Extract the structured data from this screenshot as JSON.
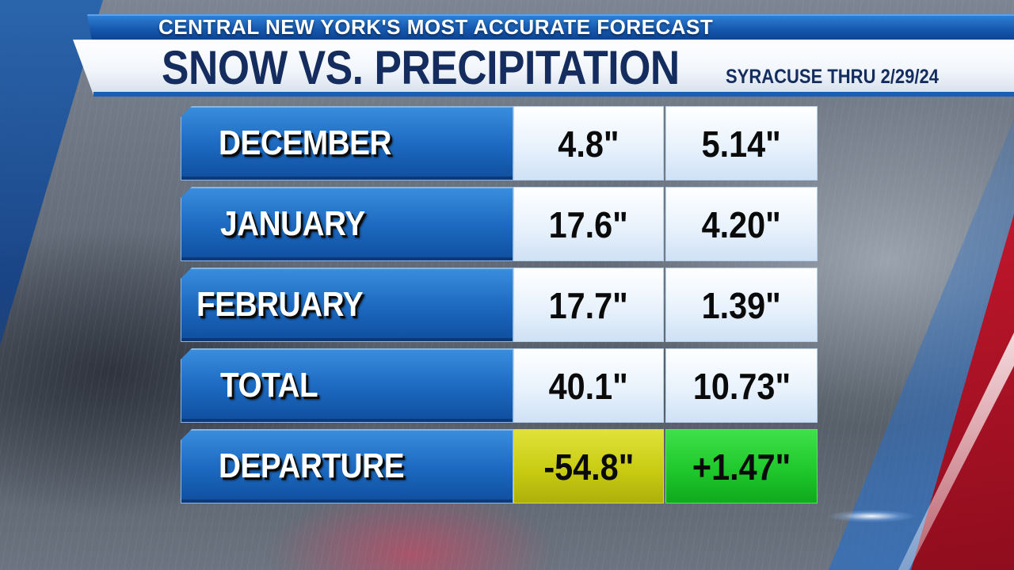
{
  "header": {
    "tagline": "CENTRAL NEW YORK'S MOST ACCURATE FORECAST",
    "title": "SNOW VS. PRECIPITATION",
    "subtitle": "SYRACUSE THRU 2/29/24"
  },
  "table": {
    "rows": [
      {
        "label": "DECEMBER",
        "snow": "4.8\"",
        "precip": "5.14\""
      },
      {
        "label": "JANUARY",
        "snow": "17.6\"",
        "precip": "4.20\""
      },
      {
        "label": "FEBRUARY",
        "snow": "17.7\"",
        "precip": "1.39\""
      },
      {
        "label": "TOTAL",
        "snow": "40.1\"",
        "precip": "10.73\""
      },
      {
        "label": "DEPARTURE",
        "snow": "-54.8\"",
        "precip": "+1.47\""
      }
    ]
  },
  "colors": {
    "brand_blue": "#1d6bc2",
    "title_navy": "#142d5e",
    "departure_snow": "#c9cc12",
    "departure_precip": "#1fc82c"
  }
}
